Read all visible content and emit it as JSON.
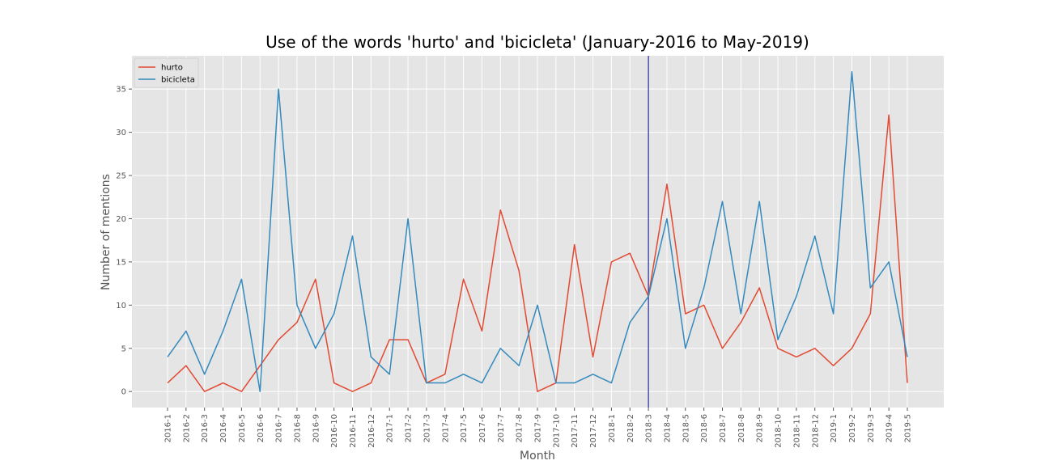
{
  "chart_data": {
    "type": "line",
    "title": "Use of the words 'hurto' and 'bicicleta' (January-2016 to May-2019)",
    "xlabel": "Month",
    "ylabel": "Number of mentions",
    "ylim": [
      -1.85,
      38.85
    ],
    "yticks": [
      0,
      5,
      10,
      15,
      20,
      25,
      30,
      35
    ],
    "grid": true,
    "legend_position": "top-left",
    "categories": [
      "2016-1",
      "2016-2",
      "2016-3",
      "2016-4",
      "2016-5",
      "2016-6",
      "2016-7",
      "2016-8",
      "2016-9",
      "2016-10",
      "2016-11",
      "2016-12",
      "2017-1",
      "2017-2",
      "2017-3",
      "2017-4",
      "2017-5",
      "2017-6",
      "2017-7",
      "2017-8",
      "2017-9",
      "2017-10",
      "2017-11",
      "2017-12",
      "2018-1",
      "2018-2",
      "2018-3",
      "2018-4",
      "2018-5",
      "2018-6",
      "2018-7",
      "2018-8",
      "2018-9",
      "2018-10",
      "2018-11",
      "2018-12",
      "2019-1",
      "2019-2",
      "2019-3",
      "2019-4",
      "2019-5"
    ],
    "series": [
      {
        "name": "hurto",
        "color": "#E24A33",
        "values": [
          1,
          3,
          0,
          1,
          0,
          3,
          6,
          8,
          13,
          1,
          0,
          1,
          6,
          6,
          1,
          2,
          13,
          7,
          21,
          14,
          0,
          1,
          17,
          4,
          15,
          16,
          11,
          24,
          9,
          10,
          5,
          8,
          12,
          5,
          4,
          5,
          3,
          5,
          9,
          32,
          1
        ]
      },
      {
        "name": "bicicleta",
        "color": "#348ABD",
        "values": [
          4,
          7,
          2,
          7,
          13,
          0,
          35,
          10,
          5,
          9,
          18,
          4,
          2,
          20,
          1,
          1,
          2,
          1,
          5,
          3,
          10,
          1,
          1,
          2,
          1,
          8,
          11,
          20,
          5,
          12,
          22,
          9,
          22,
          6,
          11,
          18,
          9,
          37,
          12,
          15,
          4
        ]
      }
    ],
    "vline": {
      "category": "2018-3",
      "color": "#00008B"
    },
    "colors": {
      "plot_background": "#E5E5E5",
      "grid": "#FFFFFF",
      "text": "#555555"
    }
  }
}
